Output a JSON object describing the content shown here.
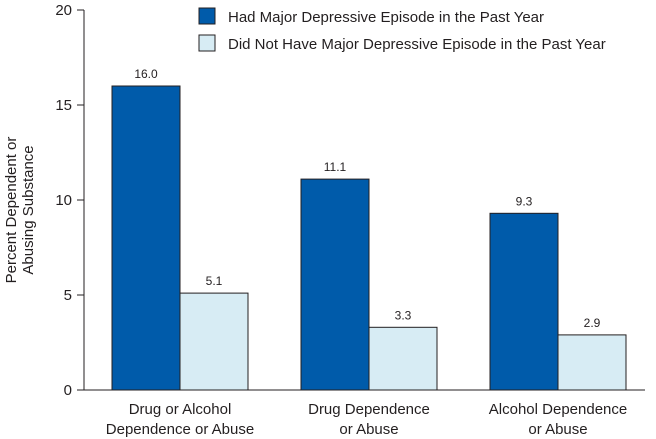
{
  "chart_data": {
    "type": "bar",
    "categories": [
      [
        "Drug or Alcohol",
        "Dependence or Abuse"
      ],
      [
        "Drug Dependence",
        "or Abuse"
      ],
      [
        "Alcohol Dependence",
        "or Abuse"
      ]
    ],
    "series": [
      {
        "name": "Had Major Depressive Episode in the Past Year",
        "values": [
          16.0,
          11.1,
          9.3
        ],
        "value_labels": [
          "16.0",
          "11.1",
          "9.3"
        ],
        "color": "#005baa"
      },
      {
        "name": "Did Not Have Major Depressive Episode in the Past Year",
        "values": [
          5.1,
          3.3,
          2.9
        ],
        "value_labels": [
          "5.1",
          "3.3",
          "2.9"
        ],
        "color": "#d7ecf4"
      }
    ],
    "ylabel_lines": [
      "Percent Dependent or",
      "Abusing Substance"
    ],
    "xlabel": "",
    "ylim": [
      0,
      20
    ],
    "yticks": [
      0,
      5,
      10,
      15,
      20
    ],
    "grid": false,
    "legend_position": "top-right",
    "bar_outline_color": "#231f20",
    "axis_color": "#231f20"
  }
}
